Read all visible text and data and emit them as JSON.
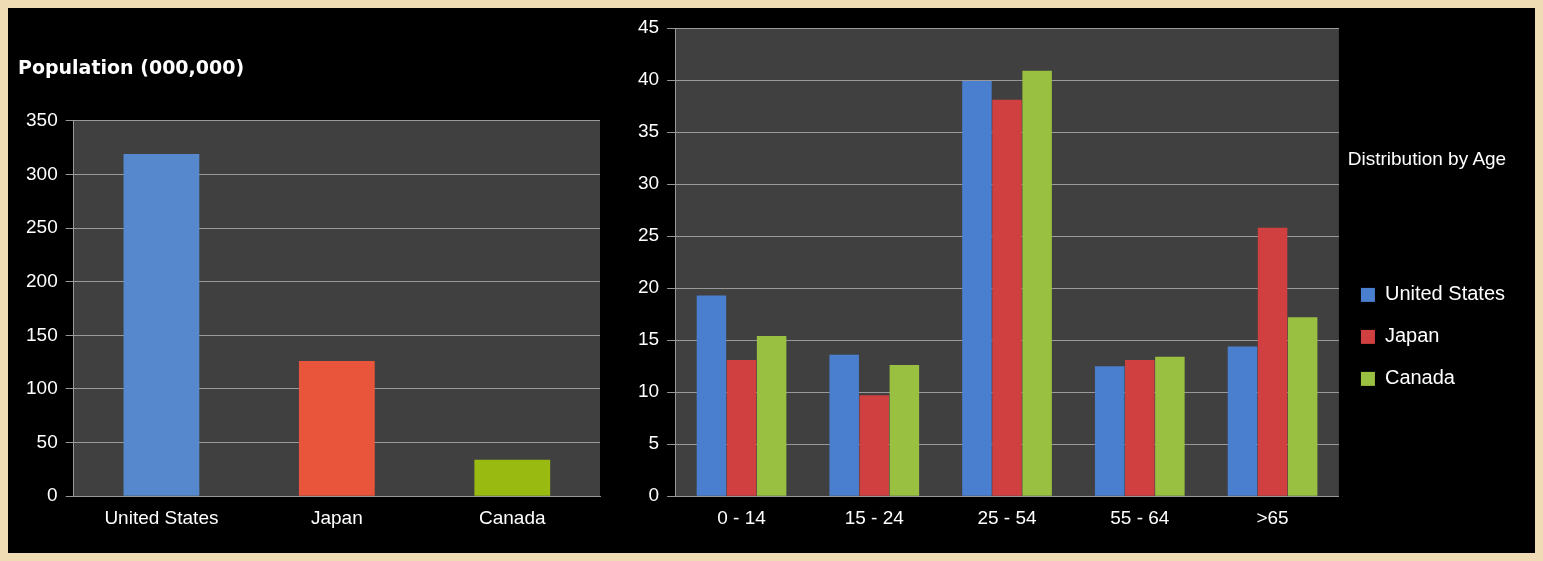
{
  "chart_data": [
    {
      "type": "bar",
      "title": "Population (000,000)",
      "categories": [
        "United States",
        "Japan",
        "Canada"
      ],
      "values": [
        319,
        126,
        34
      ],
      "colors": [
        "#5588cc",
        "#e8553a",
        "#99bb11"
      ],
      "ylim": [
        0,
        350
      ],
      "yticks": [
        0,
        50,
        100,
        150,
        200,
        250,
        300,
        350
      ],
      "grid": "y",
      "legend": false
    },
    {
      "type": "bar",
      "legend_title": "Distribution by Age",
      "categories": [
        "0 - 14",
        "15 - 24",
        "25 - 54",
        "55 - 64",
        ">65"
      ],
      "series": [
        {
          "name": "United States",
          "color": "#4a7fd0",
          "values": [
            19.3,
            13.6,
            39.9,
            12.5,
            14.4
          ]
        },
        {
          "name": "Japan",
          "color": "#d04040",
          "values": [
            13.1,
            9.7,
            38.1,
            13.1,
            25.8
          ]
        },
        {
          "name": "Canada",
          "color": "#99c040",
          "values": [
            15.4,
            12.6,
            40.9,
            13.4,
            17.2
          ]
        }
      ],
      "ylim": [
        0,
        45
      ],
      "yticks": [
        0,
        5,
        10,
        15,
        20,
        25,
        30,
        35,
        40,
        45
      ],
      "grid": "y",
      "legend": "right"
    }
  ]
}
